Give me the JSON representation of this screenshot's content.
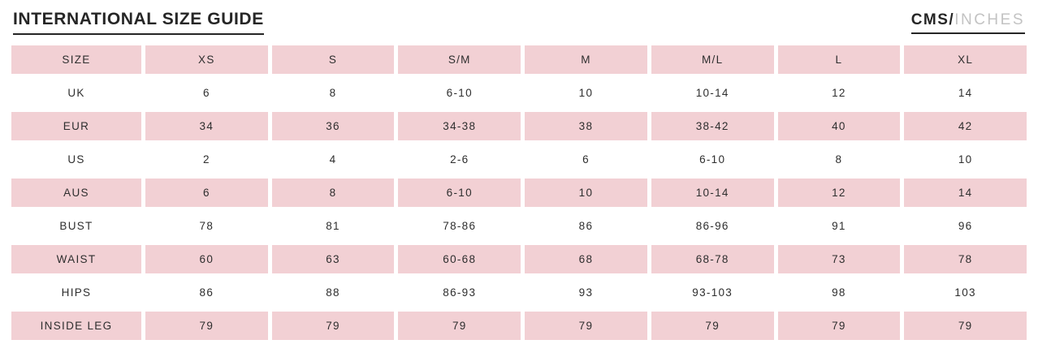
{
  "header": {
    "title": "INTERNATIONAL SIZE GUIDE",
    "units_primary": "CMS",
    "units_separator": "/",
    "units_secondary": "INCHES"
  },
  "table": {
    "columns": [
      "SIZE",
      "XS",
      "S",
      "S/M",
      "M",
      "M/L",
      "L",
      "XL"
    ],
    "rows": [
      {
        "label": "UK",
        "values": [
          "6",
          "8",
          "6-10",
          "10",
          "10-14",
          "12",
          "14"
        ]
      },
      {
        "label": "EUR",
        "values": [
          "34",
          "36",
          "34-38",
          "38",
          "38-42",
          "40",
          "42"
        ]
      },
      {
        "label": "US",
        "values": [
          "2",
          "4",
          "2-6",
          "6",
          "6-10",
          "8",
          "10"
        ]
      },
      {
        "label": "AUS",
        "values": [
          "6",
          "8",
          "6-10",
          "10",
          "10-14",
          "12",
          "14"
        ]
      },
      {
        "label": "BUST",
        "values": [
          "78",
          "81",
          "78-86",
          "86",
          "86-96",
          "91",
          "96"
        ]
      },
      {
        "label": "WAIST",
        "values": [
          "60",
          "63",
          "60-68",
          "68",
          "68-78",
          "73",
          "78"
        ]
      },
      {
        "label": "HIPS",
        "values": [
          "86",
          "88",
          "86-93",
          "93",
          "93-103",
          "98",
          "103"
        ]
      },
      {
        "label": "INSIDE LEG",
        "values": [
          "79",
          "79",
          "79",
          "79",
          "79",
          "79",
          "79"
        ]
      }
    ]
  },
  "colors": {
    "accent_pink": "#f2d0d4",
    "text_dark": "#2e2e2e",
    "title_dark": "#262626",
    "units_secondary_gray": "#c3c3c3"
  }
}
